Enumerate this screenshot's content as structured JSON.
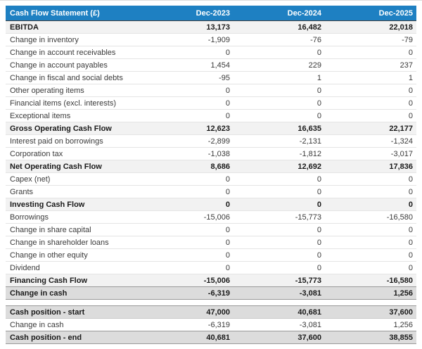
{
  "table": {
    "header": {
      "title": "Cash Flow Statement (£)",
      "columns": [
        "Dec-2023",
        "Dec-2024",
        "Dec-2025"
      ]
    },
    "rows": [
      {
        "label": "EBITDA",
        "style": "subtotal",
        "values": [
          "13,173",
          "16,482",
          "22,018"
        ]
      },
      {
        "label": "Change in inventory",
        "style": "regular",
        "values": [
          "-1,909",
          "-76",
          "-79"
        ]
      },
      {
        "label": "Change in account receivables",
        "style": "regular",
        "values": [
          "0",
          "0",
          "0"
        ]
      },
      {
        "label": "Change in account payables",
        "style": "regular",
        "values": [
          "1,454",
          "229",
          "237"
        ]
      },
      {
        "label": "Change in fiscal and social debts",
        "style": "regular",
        "values": [
          "-95",
          "1",
          "1"
        ]
      },
      {
        "label": "Other operating items",
        "style": "regular",
        "values": [
          "0",
          "0",
          "0"
        ]
      },
      {
        "label": "Financial items (excl. interests)",
        "style": "regular",
        "values": [
          "0",
          "0",
          "0"
        ]
      },
      {
        "label": "Exceptional items",
        "style": "regular",
        "values": [
          "0",
          "0",
          "0"
        ]
      },
      {
        "label": "Gross Operating Cash Flow",
        "style": "subtotal",
        "values": [
          "12,623",
          "16,635",
          "22,177"
        ]
      },
      {
        "label": "Interest paid on borrowings",
        "style": "regular",
        "values": [
          "-2,899",
          "-2,131",
          "-1,324"
        ]
      },
      {
        "label": "Corporation tax",
        "style": "regular",
        "values": [
          "-1,038",
          "-1,812",
          "-3,017"
        ]
      },
      {
        "label": "Net Operating Cash Flow",
        "style": "subtotal",
        "values": [
          "8,686",
          "12,692",
          "17,836"
        ]
      },
      {
        "label": "Capex (net)",
        "style": "regular",
        "values": [
          "0",
          "0",
          "0"
        ]
      },
      {
        "label": "Grants",
        "style": "regular",
        "values": [
          "0",
          "0",
          "0"
        ]
      },
      {
        "label": "Investing Cash Flow",
        "style": "subtotal",
        "values": [
          "0",
          "0",
          "0"
        ]
      },
      {
        "label": "Borrowings",
        "style": "regular",
        "values": [
          "-15,006",
          "-15,773",
          "-16,580"
        ]
      },
      {
        "label": "Change in share capital",
        "style": "regular",
        "values": [
          "0",
          "0",
          "0"
        ]
      },
      {
        "label": "Change in shareholder loans",
        "style": "regular",
        "values": [
          "0",
          "0",
          "0"
        ]
      },
      {
        "label": "Change in other equity",
        "style": "regular",
        "values": [
          "0",
          "0",
          "0"
        ]
      },
      {
        "label": "Dividend",
        "style": "regular",
        "values": [
          "0",
          "0",
          "0"
        ]
      },
      {
        "label": "Financing Cash Flow",
        "style": "subtotal",
        "values": [
          "-15,006",
          "-15,773",
          "-16,580"
        ]
      },
      {
        "label": "Change in cash",
        "style": "total",
        "values": [
          "-6,319",
          "-3,081",
          "1,256"
        ]
      }
    ],
    "cash_position": [
      {
        "label": "Cash position - start",
        "style": "total",
        "values": [
          "47,000",
          "40,681",
          "37,600"
        ]
      },
      {
        "label": "Change in cash",
        "style": "regular",
        "values": [
          "-6,319",
          "-3,081",
          "1,256"
        ]
      },
      {
        "label": "Cash position - end",
        "style": "total",
        "values": [
          "40,681",
          "37,600",
          "38,855"
        ]
      }
    ]
  },
  "colors": {
    "header_bg": "#1e80c2",
    "header_text": "#ffffff",
    "subtotal_row_bg": "#f2f2f2",
    "total_row_bg": "#dcdcdc",
    "body_text": "#3a3a3a"
  }
}
